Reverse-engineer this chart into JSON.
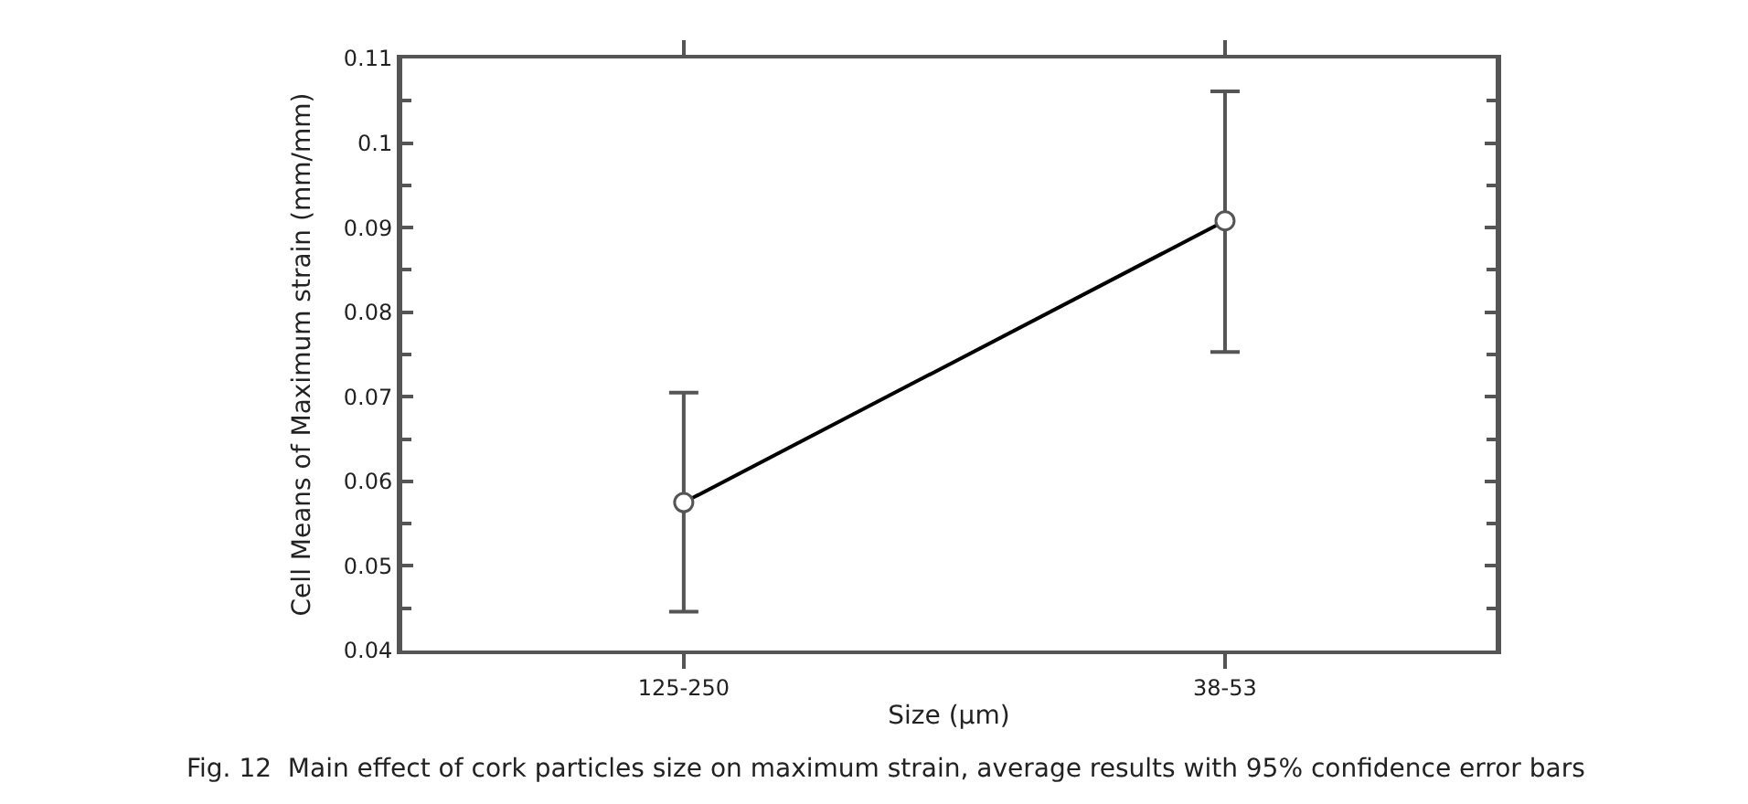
{
  "chart_data": {
    "type": "line",
    "xlabel": "Size (µm)",
    "ylabel": "Cell Means of Maximum strain (mm/mm)",
    "categories": [
      "125-250",
      "38-53"
    ],
    "series": [
      {
        "color": "#000000",
        "values": [
          0.0575,
          0.0908
        ],
        "errors": [
          [
            0.0446,
            0.0705
          ],
          [
            0.0753,
            0.1061
          ]
        ]
      }
    ],
    "ylim": [
      0.04,
      0.11
    ],
    "yticks": [
      0.04,
      0.05,
      0.06,
      0.07,
      0.08,
      0.09,
      0.1,
      0.11
    ],
    "marker": "circle",
    "line_style": "solid",
    "legend": false,
    "annotations": [
      "Fig. 12  Main effect of cork particles size on maximum strain, average results with 95% confidence error bars"
    ]
  }
}
